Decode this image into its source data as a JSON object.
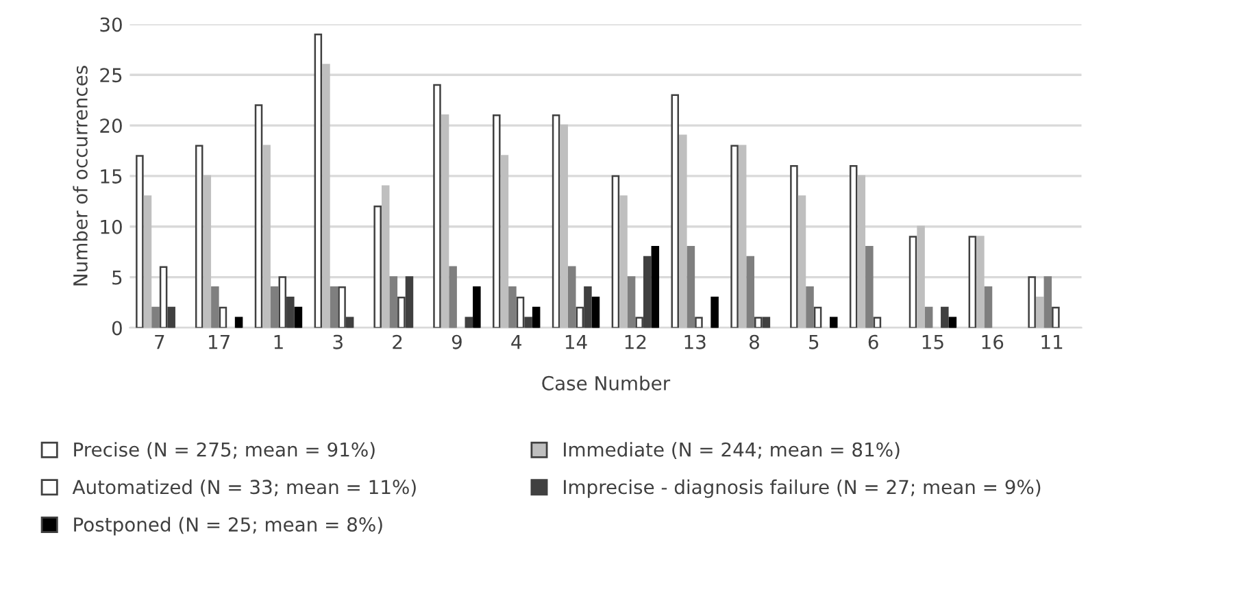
{
  "chart_data": {
    "type": "bar",
    "xlabel": "Case Number",
    "ylabel": "Number of occurrences",
    "categories": [
      "7",
      "17",
      "1",
      "3",
      "2",
      "9",
      "4",
      "14",
      "12",
      "13",
      "8",
      "5",
      "6",
      "15",
      "16",
      "11"
    ],
    "series": [
      {
        "name": "Precise (N = 275; mean = 91%)",
        "color": "#ffffff",
        "values": [
          17,
          18,
          22,
          29,
          12,
          24,
          21,
          21,
          15,
          23,
          18,
          16,
          16,
          9,
          9,
          5
        ]
      },
      {
        "name": "Immediate (N = 244; mean = 81%)",
        "color": "#bfbfbf",
        "values": [
          13,
          15,
          18,
          26,
          14,
          21,
          17,
          20,
          13,
          19,
          18,
          13,
          15,
          10,
          9,
          3
        ]
      },
      {
        "color": "#7f7f7f",
        "values": [
          2,
          4,
          4,
          4,
          5,
          6,
          4,
          6,
          5,
          8,
          7,
          4,
          8,
          2,
          4,
          5
        ]
      },
      {
        "name": "Automatized (N = 33; mean = 11%)",
        "color": "#ffffff",
        "values": [
          6,
          2,
          5,
          4,
          3,
          0,
          3,
          2,
          1,
          1,
          1,
          2,
          1,
          0,
          0,
          2
        ]
      },
      {
        "name": "Imprecise - diagnosis failure (N = 27; mean = 9%)",
        "color": "#404040",
        "values": [
          2,
          0,
          3,
          1,
          5,
          1,
          1,
          4,
          7,
          0,
          1,
          0,
          0,
          2,
          0,
          0
        ]
      },
      {
        "name": "Postponed (N = 25; mean = 8%)",
        "color": "#000000",
        "values": [
          0,
          1,
          2,
          0,
          0,
          4,
          2,
          3,
          8,
          3,
          0,
          1,
          0,
          1,
          0,
          0
        ]
      }
    ],
    "ylim": [
      0,
      30
    ],
    "yticks": [
      0,
      5,
      10,
      15,
      20,
      25,
      30
    ],
    "grid": "y",
    "legend": "bottom"
  }
}
